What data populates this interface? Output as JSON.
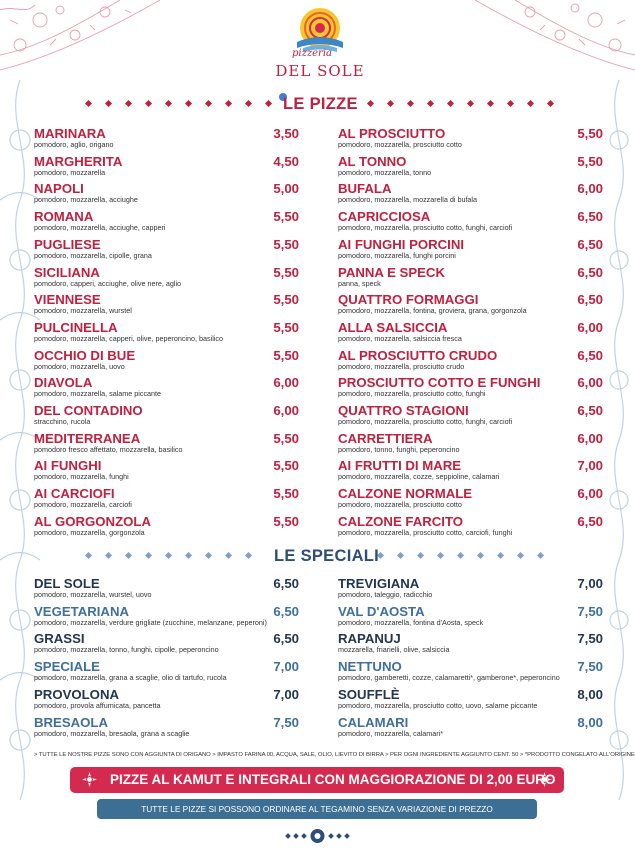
{
  "brand": {
    "script": "pizzeria",
    "name": "DEL SOLE"
  },
  "colors": {
    "red": "#c0213f",
    "navy": "#23354f",
    "steel": "#3e6f9e",
    "banner_red": "#d52a4f",
    "banner_blue": "#3d6f95"
  },
  "pizze": {
    "title": "LE PIZZE",
    "left": [
      {
        "name": "MARINARA",
        "price": "3,50",
        "desc": "pomodoro, aglio, origano"
      },
      {
        "name": "MARGHERITA",
        "price": "4,50",
        "desc": "pomodoro, mozzarella"
      },
      {
        "name": "NAPOLI",
        "price": "5,00",
        "desc": "pomodoro, mozzarella, acciughe"
      },
      {
        "name": "ROMANA",
        "price": "5,50",
        "desc": "pomodoro, mozzarella, acciughe, capperi"
      },
      {
        "name": "PUGLIESE",
        "price": "5,50",
        "desc": "pomodoro, mozzarella, cipolle, grana"
      },
      {
        "name": "SICILIANA",
        "price": "5,50",
        "desc": "pomodoro, capperi, acciughe, olive nere, aglio"
      },
      {
        "name": "VIENNESE",
        "price": "5,50",
        "desc": "pomodoro, mozzarella, wurstel"
      },
      {
        "name": "PULCINELLA",
        "price": "5,50",
        "desc": "pomodoro, mozzarella, capperi, olive, peperoncino, basilico"
      },
      {
        "name": "OCCHIO DI BUE",
        "price": "5,50",
        "desc": "pomodoro, mozzarella, uovo"
      },
      {
        "name": "DIAVOLA",
        "price": "6,00",
        "desc": "pomodoro, mozzarella, salame piccante"
      },
      {
        "name": "DEL CONTADINO",
        "price": "6,00",
        "desc": "stracchino, rucola"
      },
      {
        "name": "MEDITERRANEA",
        "price": "5,50",
        "desc": "pomodoro fresco affettato, mozzarella, basilico"
      },
      {
        "name": "AI FUNGHI",
        "price": "5,50",
        "desc": "pomodoro, mozzarella, funghi"
      },
      {
        "name": "AI CARCIOFI",
        "price": "5,50",
        "desc": "pomodoro, mozzarella, carciofi"
      },
      {
        "name": "AL GORGONZOLA",
        "price": "5,50",
        "desc": "pomodoro, mozzarella, gorgonzola"
      }
    ],
    "right": [
      {
        "name": "AL PROSCIUTTO",
        "price": "5,50",
        "desc": "pomodoro, mozzarella, prosciutto cotto"
      },
      {
        "name": "AL TONNO",
        "price": "5,50",
        "desc": "pomodoro, mozzarella, tonno"
      },
      {
        "name": "BUFALA",
        "price": "6,00",
        "desc": "pomodoro, mozzarella, mozzarella di bufala"
      },
      {
        "name": "CAPRICCIOSA",
        "price": "6,50",
        "desc": "pomodoro, mozzarella, prosciutto cotto, funghi, carciofi"
      },
      {
        "name": "AI FUNGHI PORCINI",
        "price": "6,50",
        "desc": "pomodoro, mozzarella, funghi porcini"
      },
      {
        "name": "PANNA E SPECK",
        "price": "6,50",
        "desc": "panna, speck"
      },
      {
        "name": "QUATTRO FORMAGGI",
        "price": "6,50",
        "desc": "pomodoro, mozzarella, fontina, groviera, grana, gorgonzola"
      },
      {
        "name": "ALLA SALSICCIA",
        "price": "6,00",
        "desc": "pomodoro, mozzarella, salsiccia fresca"
      },
      {
        "name": "AL PROSCIUTTO CRUDO",
        "price": "6,50",
        "desc": "pomodoro, mozzarella, prosciutto crudo"
      },
      {
        "name": "PROSCIUTTO COTTO E FUNGHI",
        "price": "6,00",
        "desc": "pomodoro, mozzarella, prosciutto cotto, funghi"
      },
      {
        "name": "QUATTRO STAGIONI",
        "price": "6,50",
        "desc": "pomodoro, mozzarella, prosciutto cotto, funghi, carciofi"
      },
      {
        "name": "CARRETTIERA",
        "price": "6,00",
        "desc": "pomodoro, tonno, funghi, peperoncino"
      },
      {
        "name": "AI FRUTTI DI MARE",
        "price": "7,00",
        "desc": "pomodoro, mozzarella, cozze, seppioline, calamari"
      },
      {
        "name": "CALZONE NORMALE",
        "price": "6,00",
        "desc": "pomodoro, mozzarella, prosciutto cotto"
      },
      {
        "name": "CALZONE FARCITO",
        "price": "6,50",
        "desc": "pomodoro, mozzarella, prosciutto cotto, carciofi, funghi"
      }
    ]
  },
  "speciali": {
    "title": "LE SPECIALI",
    "left": [
      {
        "name": "DEL SOLE",
        "price": "6,50",
        "desc": "pomodoro, mozzarella, wurstel, uovo",
        "tone": "navy"
      },
      {
        "name": "VEGETARIANA",
        "price": "6,50",
        "desc": "pomodoro, mozzarella, verdure grigliate (zucchine, melanzane, peperoni)",
        "tone": "steel"
      },
      {
        "name": "GRASSI",
        "price": "6,50",
        "desc": "pomodoro, mozzarella, tonno, funghi, cipolle, peperoncino",
        "tone": "navy"
      },
      {
        "name": "SPECIALE",
        "price": "7,00",
        "desc": "pomodoro, mozzarella, grana a scaglie, olio di tartufo, rucola",
        "tone": "steel"
      },
      {
        "name": "PROVOLONA",
        "price": "7,00",
        "desc": "pomodoro, provola affumicata, pancetta",
        "tone": "navy"
      },
      {
        "name": "BRESAOLA",
        "price": "7,50",
        "desc": "pomodoro, mozzarella, bresaola, grana a scaglie",
        "tone": "steel"
      }
    ],
    "right": [
      {
        "name": "TREVIGIANA",
        "price": "7,00",
        "desc": "pomodoro, taleggio, radicchio",
        "tone": "navy"
      },
      {
        "name": "VAL D'AOSTA",
        "price": "7,50",
        "desc": "pomodoro, mozzarella, fontina d'Aosta, speck",
        "tone": "steel"
      },
      {
        "name": "RAPANUJ",
        "price": "7,50",
        "desc": "mozzarella, friarielli, olive, salsiccia",
        "tone": "navy"
      },
      {
        "name": "NETTUNO",
        "price": "7,50",
        "desc": "pomodoro, gamberetti, cozze, calamaretti*, gamberone*, peperoncino",
        "tone": "steel"
      },
      {
        "name": "SOUFFLÈ",
        "price": "8,00",
        "desc": "pomodoro, mozzarella, prosciutto cotto, uovo, salame piccante",
        "tone": "navy"
      },
      {
        "name": "CALAMARI",
        "price": "8,00",
        "desc": "pomodoro, mozzarella, calamari*",
        "tone": "steel"
      }
    ]
  },
  "footnote": "> TUTTE LE NOSTRE PIZZE SONO CON AGGIUNTA DI ORIGANO > IMPASTO FARINA 00, ACQUA, SALE, OLIO, LIEVITO DI BIRRA > PER OGNI INGREDIENTE AGGIUNTO CENT. 50 > *PRODOTTO CONGELATO ALL'ORIGINE",
  "banner_kamut": "PIZZE AL KAMUT  E INTEGRALI  CON MAGGIORAZIONE DI 2,00 EURO",
  "banner_tegamino": "TUTTE LE PIZZE SI POSSONO ORDINARE AL TEGAMINO SENZA VARIAZIONE DI PREZZO"
}
